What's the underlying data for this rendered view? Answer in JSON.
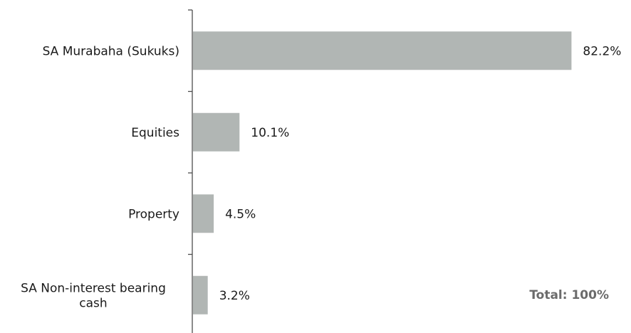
{
  "chart_data": {
    "type": "bar",
    "orientation": "horizontal",
    "categories": [
      [
        "SA Murabaha (Sukuks)"
      ],
      [
        "Equities"
      ],
      [
        "Property"
      ],
      [
        "SA Non-interest bearing",
        "cash"
      ]
    ],
    "values": [
      82.2,
      10.1,
      4.5,
      3.2
    ],
    "value_labels": [
      "82.2%",
      "10.1%",
      "4.5%",
      "3.2%"
    ],
    "xlim": [
      0,
      100
    ],
    "bar_color": "#b1b6b4",
    "axis_color": "#4d4d4d",
    "grid": false,
    "legend": "none",
    "annotation": "Total: 100%"
  }
}
